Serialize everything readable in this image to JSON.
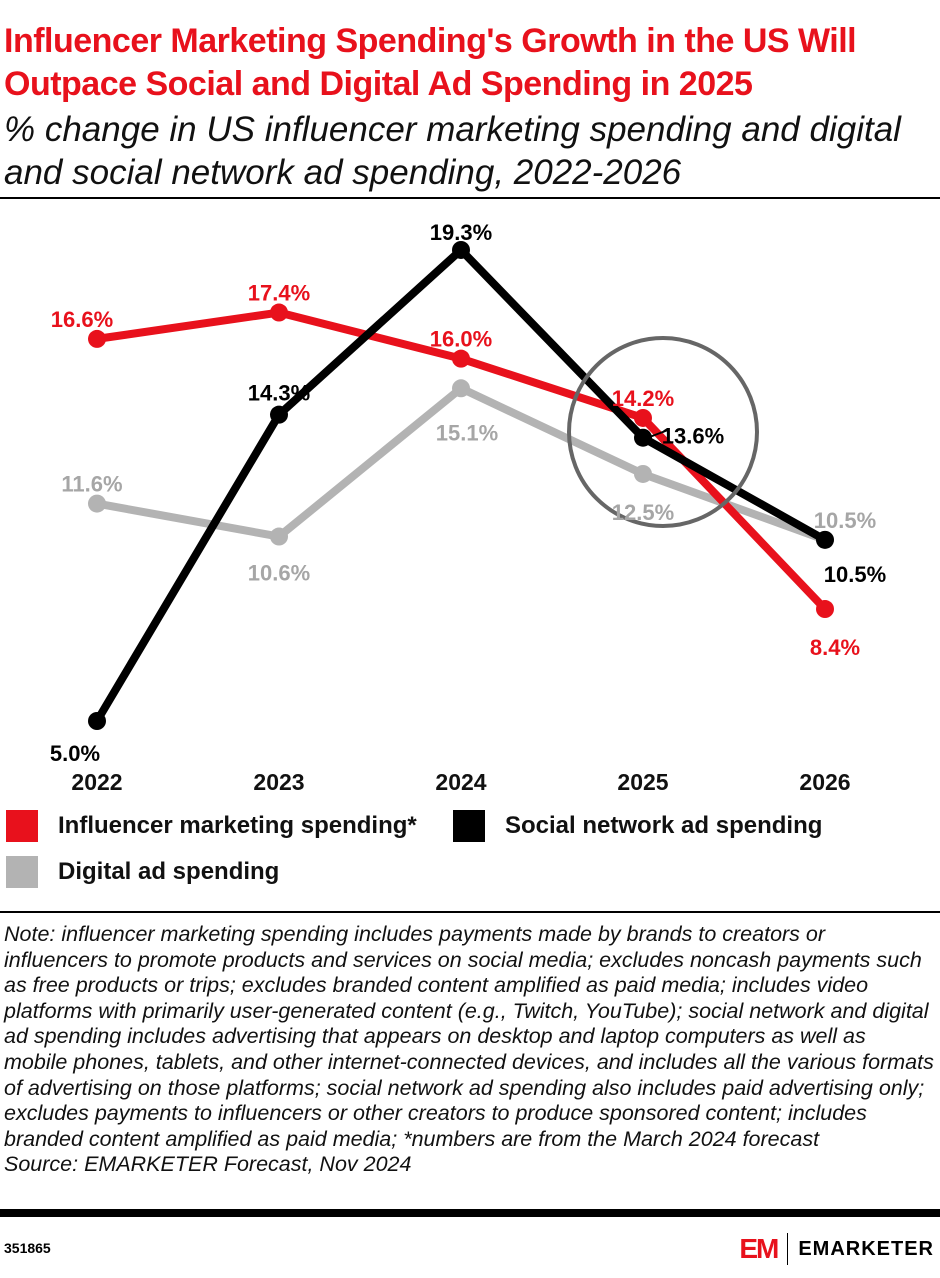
{
  "title": "Influencer Marketing Spending's Growth in the US Will Outpace Social and Digital Ad Spending in 2025",
  "subtitle": "% change in US influencer marketing spending and digital and social network ad spending, 2022-2026",
  "chart_data": {
    "type": "line",
    "categories": [
      "2022",
      "2023",
      "2024",
      "2025",
      "2026"
    ],
    "ylim": [
      5,
      19.3
    ],
    "grid": false,
    "legend_placement": "bottom",
    "series": [
      {
        "name": "Influencer marketing spending*",
        "color": "#e8111c",
        "values": [
          16.6,
          17.4,
          16.0,
          14.2,
          8.4
        ],
        "labels": [
          "16.6%",
          "17.4%",
          "16.0%",
          "14.2%",
          "8.4%"
        ]
      },
      {
        "name": "Social network ad spending",
        "color": "#000000",
        "values": [
          5.0,
          14.3,
          19.3,
          13.6,
          10.5
        ],
        "labels": [
          "5.0%",
          "14.3%",
          "19.3%",
          "13.6%",
          "10.5%"
        ]
      },
      {
        "name": "Digital ad spending",
        "color": "#b3b3b3",
        "values": [
          11.6,
          10.6,
          15.1,
          12.5,
          10.5
        ],
        "labels": [
          "11.6%",
          "10.6%",
          "15.1%",
          "12.5%",
          "10.5%"
        ]
      }
    ],
    "annotation": "circle highlighting 2025"
  },
  "note": "Note: influencer marketing spending includes payments made by brands to creators or influencers to promote products and services on social media; excludes noncash payments such as free products or trips; excludes branded content amplified as paid media; includes video platforms with primarily user-generated content (e.g., Twitch, YouTube); social network and digital ad spending includes advertising that appears on desktop and laptop computers as well as mobile phones, tablets, and other internet-connected devices, and includes all the various formats of advertising on those platforms; social network ad spending also includes paid advertising only; excludes payments to influencers or other creators to produce sponsored content; includes branded content amplified as paid media; *numbers are from the March 2024 forecast",
  "source": "Source: EMARKETER Forecast, Nov 2024",
  "chart_id": "351865",
  "logo": {
    "mark": "EM",
    "brand": "EMARKETER"
  }
}
